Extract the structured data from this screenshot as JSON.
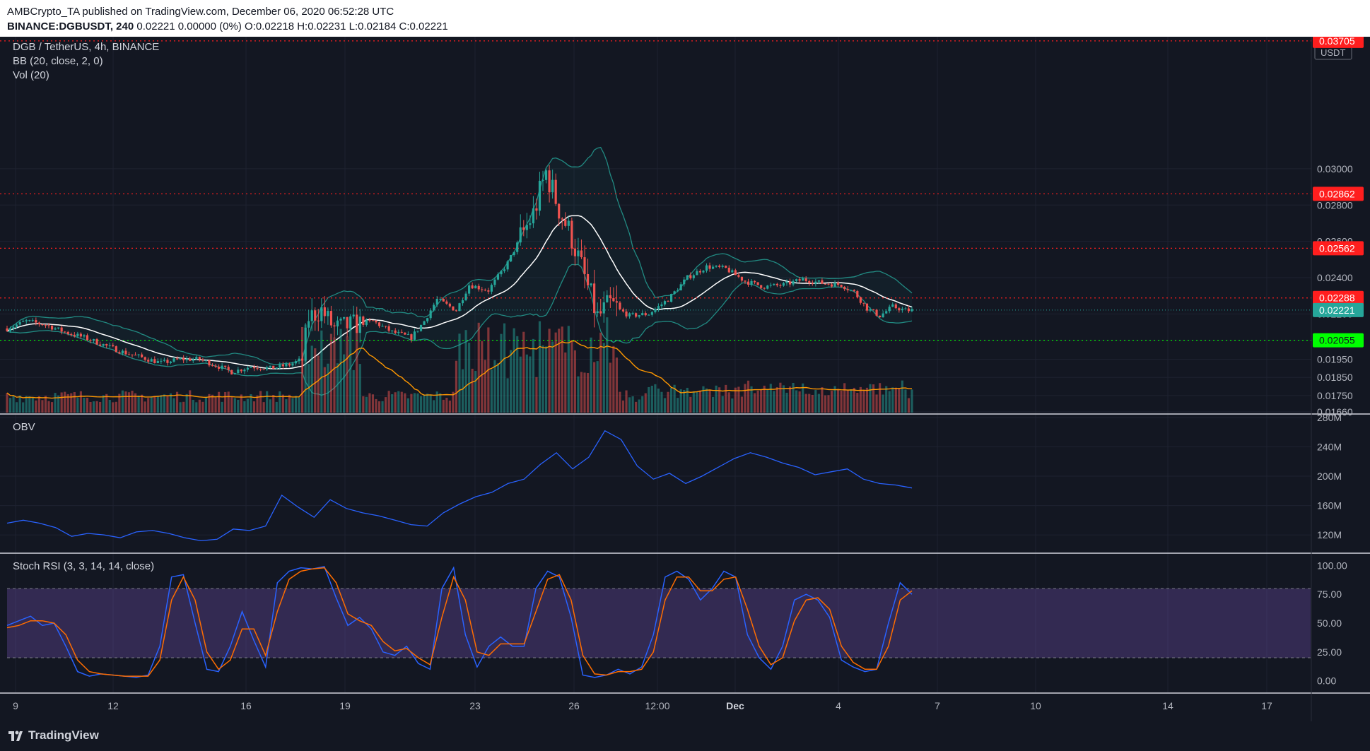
{
  "header": {
    "publisher_line": "AMBCrypto_TA published on TradingView.com, December 06, 2020 06:52:28 UTC",
    "symbol": "BINANCE:DGBUSDT, 240",
    "quote": "0.02221 0.00000 (0%) O:0.02218 H:0.02231 L:0.02184 C:0.02221"
  },
  "footer": {
    "brand": "TradingView"
  },
  "chart_data": [
    {
      "type": "candlestick",
      "panel": "price",
      "title": "DGB / TetherUS, 4h, BINANCE",
      "indicators": [
        "BB (20, close, 2, 0)",
        "Vol (20)"
      ],
      "currency": "USDT",
      "ylim": [
        0.0166,
        0.0372
      ],
      "y_ticks": [
        0.03,
        0.028,
        0.026,
        0.024,
        0.022,
        0.02055,
        0.0195,
        0.0185,
        0.0175,
        0.0166
      ],
      "y_tick_labels": [
        "0.03000",
        "0.02800",
        "0.02600",
        "0.02400",
        "0.02200",
        "0.02055",
        "0.01950",
        "0.01850",
        "0.01750",
        "0.01660"
      ],
      "top_label": "0.03705",
      "horizontal_levels": [
        {
          "value": 0.02862,
          "label": "0.02862",
          "color": "#ff1e1e",
          "style": "dotted"
        },
        {
          "value": 0.02562,
          "label": "0.02562",
          "color": "#ff1e1e",
          "style": "dotted"
        },
        {
          "value": 0.02288,
          "label": "0.02288",
          "color": "#ff1e1e",
          "style": "dotted"
        },
        {
          "value": 0.02055,
          "label": "0.02055",
          "color": "#00ff00",
          "style": "dotted"
        },
        {
          "value": 0.03705,
          "label": "0.03705",
          "color": "#ff1e1e",
          "style": "dotted"
        }
      ],
      "last_price": {
        "value": 0.02221,
        "label": "0.02221",
        "color": "#26a69a"
      },
      "price_path": [
        [
          0,
          0.0212
        ],
        [
          6,
          0.0216
        ],
        [
          12,
          0.0214
        ],
        [
          18,
          0.021
        ],
        [
          24,
          0.0207
        ],
        [
          30,
          0.0203
        ],
        [
          36,
          0.0199
        ],
        [
          42,
          0.0196
        ],
        [
          48,
          0.0193
        ],
        [
          54,
          0.0195
        ],
        [
          60,
          0.0195
        ],
        [
          66,
          0.0191
        ],
        [
          70,
          0.0188
        ],
        [
          76,
          0.0191
        ],
        [
          82,
          0.019
        ],
        [
          88,
          0.0192
        ],
        [
          92,
          0.0195
        ],
        [
          94,
          0.0218
        ],
        [
          98,
          0.0222
        ],
        [
          102,
          0.0212
        ],
        [
          108,
          0.0214
        ],
        [
          114,
          0.0216
        ],
        [
          120,
          0.021
        ],
        [
          126,
          0.0207
        ],
        [
          130,
          0.0216
        ],
        [
          134,
          0.0228
        ],
        [
          140,
          0.0222
        ],
        [
          144,
          0.0236
        ],
        [
          150,
          0.0233
        ],
        [
          156,
          0.0248
        ],
        [
          160,
          0.0262
        ],
        [
          164,
          0.0275
        ],
        [
          168,
          0.0298
        ],
        [
          172,
          0.0278
        ],
        [
          176,
          0.0262
        ],
        [
          180,
          0.024
        ],
        [
          184,
          0.0218
        ],
        [
          188,
          0.0225
        ],
        [
          194,
          0.0219
        ],
        [
          200,
          0.022
        ],
        [
          206,
          0.0228
        ],
        [
          212,
          0.024
        ],
        [
          218,
          0.0246
        ],
        [
          224,
          0.0245
        ],
        [
          230,
          0.0238
        ],
        [
          236,
          0.0235
        ],
        [
          242,
          0.0236
        ],
        [
          248,
          0.0239
        ],
        [
          254,
          0.0237
        ],
        [
          260,
          0.0236
        ],
        [
          264,
          0.0232
        ],
        [
          268,
          0.0223
        ],
        [
          272,
          0.0219
        ],
        [
          276,
          0.0224
        ],
        [
          280,
          0.0222
        ],
        [
          282,
          0.0222
        ]
      ],
      "volume_avg_color": "#ff9800",
      "bb_basis_color": "#ffffff",
      "bb_band_color": "#26a69a",
      "up_color": "#26a69a",
      "down_color": "#ef5350"
    },
    {
      "type": "line",
      "panel": "obv",
      "title": "OBV",
      "y_tick_labels": [
        "280M",
        "240M",
        "200M",
        "160M",
        "120M"
      ],
      "y_ticks": [
        280,
        240,
        200,
        160,
        120
      ],
      "ylim": [
        96,
        280
      ],
      "color": "#2962ff",
      "values": [
        136,
        140,
        136,
        130,
        118,
        122,
        120,
        116,
        124,
        126,
        122,
        116,
        112,
        114,
        128,
        126,
        132,
        174,
        158,
        144,
        168,
        156,
        150,
        146,
        140,
        134,
        132,
        150,
        162,
        172,
        178,
        190,
        196,
        216,
        232,
        210,
        226,
        262,
        250,
        214,
        196,
        204,
        190,
        200,
        212,
        224,
        232,
        226,
        218,
        212,
        202,
        206,
        210,
        196,
        190,
        188,
        184
      ]
    },
    {
      "type": "line",
      "panel": "stoch_rsi",
      "title": "Stoch RSI (3, 3, 14, 14, close)",
      "y_tick_labels": [
        "100.00",
        "75.00",
        "50.00",
        "25.00",
        "0.00"
      ],
      "y_ticks": [
        100,
        75,
        50,
        25,
        0
      ],
      "ylim": [
        -10,
        110
      ],
      "band": [
        20,
        80
      ],
      "band_color": "#7e57c2",
      "series": [
        {
          "name": "K",
          "color": "#2962ff",
          "values": [
            48,
            52,
            56,
            48,
            50,
            30,
            8,
            4,
            6,
            5,
            4,
            3,
            5,
            30,
            90,
            92,
            50,
            10,
            8,
            30,
            60,
            35,
            12,
            85,
            95,
            98,
            97,
            99,
            72,
            48,
            55,
            45,
            25,
            22,
            30,
            15,
            10,
            80,
            98,
            40,
            12,
            30,
            38,
            30,
            30,
            80,
            95,
            90,
            55,
            5,
            3,
            5,
            10,
            6,
            12,
            40,
            90,
            95,
            88,
            70,
            80,
            95,
            90,
            40,
            20,
            10,
            30,
            70,
            75,
            70,
            55,
            18,
            12,
            8,
            10,
            50,
            85,
            75
          ]
        },
        {
          "name": "D",
          "color": "#ff6d00",
          "values": [
            46,
            48,
            52,
            52,
            50,
            40,
            18,
            8,
            6,
            5,
            4,
            4,
            4,
            18,
            70,
            90,
            70,
            25,
            10,
            18,
            45,
            45,
            22,
            60,
            88,
            95,
            97,
            98,
            85,
            58,
            52,
            48,
            34,
            26,
            28,
            20,
            14,
            55,
            90,
            70,
            25,
            22,
            32,
            32,
            32,
            60,
            88,
            92,
            70,
            22,
            6,
            5,
            8,
            8,
            10,
            25,
            70,
            90,
            90,
            78,
            78,
            88,
            90,
            62,
            30,
            14,
            20,
            52,
            70,
            72,
            62,
            30,
            16,
            10,
            10,
            30,
            70,
            78
          ]
        }
      ]
    }
  ],
  "x_axis": {
    "labels": [
      "9",
      "12",
      "16",
      "19",
      "23",
      "26",
      "12:00",
      "Dec",
      "4",
      "7",
      "10",
      "14",
      "17"
    ],
    "bold": [
      "Dec"
    ]
  }
}
